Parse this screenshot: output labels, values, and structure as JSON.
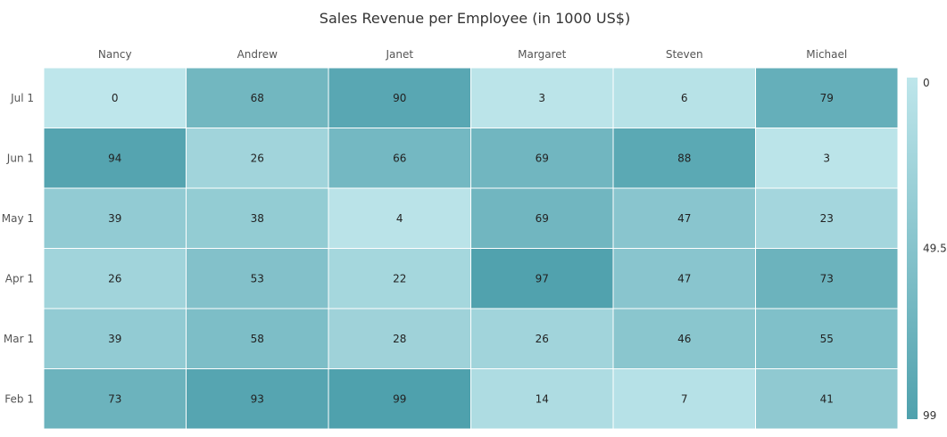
{
  "chart_data": {
    "type": "heatmap",
    "title": "Sales Revenue per Employee (in 1000 US$)",
    "x_categories": [
      "Nancy",
      "Andrew",
      "Janet",
      "Margaret",
      "Steven",
      "Michael"
    ],
    "y_categories": [
      "Jul 1",
      "Jun 1",
      "May 1",
      "Apr 1",
      "Mar 1",
      "Feb 1"
    ],
    "values": [
      [
        0,
        68,
        90,
        3,
        6,
        79
      ],
      [
        94,
        26,
        66,
        69,
        88,
        3
      ],
      [
        39,
        38,
        4,
        69,
        47,
        23
      ],
      [
        26,
        53,
        22,
        97,
        47,
        73
      ],
      [
        39,
        58,
        28,
        26,
        46,
        55
      ],
      [
        73,
        93,
        99,
        14,
        7,
        41
      ]
    ],
    "color_range": {
      "min": 0,
      "max": 99,
      "min_color": "#bee6eb",
      "max_color": "#4fa1ad"
    },
    "legend": {
      "position": "right",
      "tick_labels": [
        "0",
        "49.5",
        "99"
      ]
    }
  }
}
